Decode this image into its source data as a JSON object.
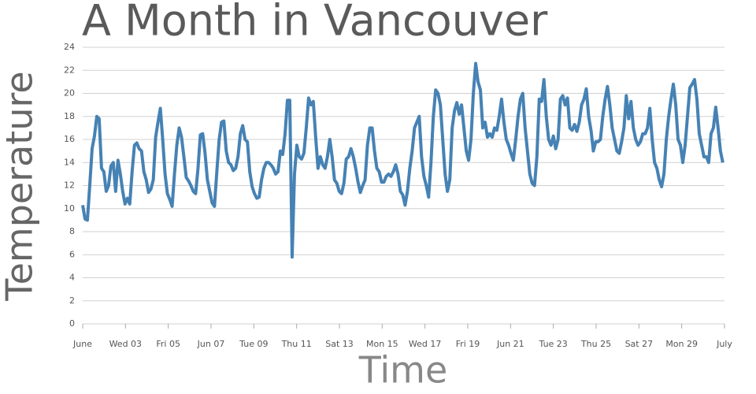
{
  "chart_data": {
    "type": "line",
    "title": "A Month in Vancouver",
    "xlabel": "Time",
    "ylabel": "Temperature",
    "color": "#4682b4",
    "grid": true,
    "xlim": [
      0,
      30
    ],
    "ylim": [
      0,
      24
    ],
    "yticks": [
      0,
      2,
      4,
      6,
      8,
      10,
      12,
      14,
      16,
      18,
      20,
      22,
      24
    ],
    "xticks": [
      {
        "value": 0,
        "label": "June"
      },
      {
        "value": 2,
        "label": "Wed 03"
      },
      {
        "value": 4,
        "label": "Fri 05"
      },
      {
        "value": 6,
        "label": "Jun 07"
      },
      {
        "value": 8,
        "label": "Tue 09"
      },
      {
        "value": 10,
        "label": "Thu 11"
      },
      {
        "value": 12,
        "label": "Sat 13"
      },
      {
        "value": 14,
        "label": "Mon 15"
      },
      {
        "value": 16,
        "label": "Wed 17"
      },
      {
        "value": 18,
        "label": "Fri 19"
      },
      {
        "value": 20,
        "label": "Jun 21"
      },
      {
        "value": 22,
        "label": "Tue 23"
      },
      {
        "value": 24,
        "label": "Thu 25"
      },
      {
        "value": 26,
        "label": "Sat 27"
      },
      {
        "value": 28,
        "label": "Mon 29"
      },
      {
        "value": 30,
        "label": "July"
      }
    ],
    "x": [
      0,
      0.11,
      0.22,
      0.33,
      0.44,
      0.55,
      0.66,
      0.77,
      0.88,
      0.99,
      1.1,
      1.21,
      1.32,
      1.43,
      1.54,
      1.65,
      1.76,
      1.87,
      1.98,
      2.09,
      2.2,
      2.31,
      2.42,
      2.53,
      2.64,
      2.75,
      2.86,
      2.97,
      3.08,
      3.19,
      3.3,
      3.41,
      3.52,
      3.63,
      3.74,
      3.85,
      3.96,
      4.07,
      4.18,
      4.29,
      4.4,
      4.51,
      4.62,
      4.73,
      4.84,
      4.95,
      5.06,
      5.17,
      5.28,
      5.39,
      5.5,
      5.61,
      5.72,
      5.83,
      5.94,
      6.05,
      6.16,
      6.27,
      6.38,
      6.49,
      6.6,
      6.71,
      6.82,
      6.93,
      7.04,
      7.15,
      7.26,
      7.37,
      7.48,
      7.59,
      7.7,
      7.81,
      7.92,
      8.03,
      8.14,
      8.25,
      8.36,
      8.47,
      8.58,
      8.69,
      8.8,
      8.91,
      9.02,
      9.13,
      9.24,
      9.35,
      9.46,
      9.57,
      9.68,
      9.79,
      9.9,
      10.01,
      10.12,
      10.23,
      10.34,
      10.45,
      10.56,
      10.67,
      10.78,
      10.89,
      11,
      11.11,
      11.22,
      11.33,
      11.44,
      11.55,
      11.66,
      11.77,
      11.88,
      11.99,
      12.1,
      12.21,
      12.32,
      12.43,
      12.54,
      12.65,
      12.76,
      12.87,
      12.98,
      13.09,
      13.2,
      13.31,
      13.42,
      13.53,
      13.64,
      13.75,
      13.86,
      13.97,
      14.08,
      14.19,
      14.3,
      14.41,
      14.52,
      14.63,
      14.74,
      14.85,
      14.96,
      15.07,
      15.18,
      15.29,
      15.4,
      15.51,
      15.62,
      15.73,
      15.84,
      15.95,
      16.06,
      16.17,
      16.28,
      16.39,
      16.5,
      16.61,
      16.72,
      16.83,
      16.94,
      17.05,
      17.16,
      17.27,
      17.38,
      17.49,
      17.6,
      17.71,
      17.82,
      17.93,
      18.04,
      18.15,
      18.26,
      18.37,
      18.48,
      18.59,
      18.7,
      18.81,
      18.92,
      19.03,
      19.14,
      19.25,
      19.36,
      19.47,
      19.58,
      19.69,
      19.8,
      19.91,
      20.02,
      20.13,
      20.24,
      20.35,
      20.46,
      20.57,
      20.68,
      20.79,
      20.9,
      21.01,
      21.12,
      21.23,
      21.34,
      21.45,
      21.56,
      21.67,
      21.78,
      21.89,
      22,
      22.11,
      22.22,
      22.33,
      22.44,
      22.55,
      22.66,
      22.77,
      22.88,
      22.99,
      23.1,
      23.21,
      23.32,
      23.43,
      23.54,
      23.65,
      23.76,
      23.87,
      23.98,
      24.09,
      24.2,
      24.31,
      24.42,
      24.53,
      24.64,
      24.75,
      24.86,
      24.97,
      25.08,
      25.19,
      25.3,
      25.41,
      25.52,
      25.63,
      25.74,
      25.85,
      25.96,
      26.07,
      26.18,
      26.29,
      26.4,
      26.51,
      26.62,
      26.73,
      26.84,
      26.95,
      27.06,
      27.17,
      27.28,
      27.39,
      27.5,
      27.61,
      27.72,
      27.83,
      27.94,
      28.05,
      28.16,
      28.27,
      28.38,
      28.49,
      28.6,
      28.71,
      28.82,
      28.93,
      29.04,
      29.15,
      29.26,
      29.37,
      29.48,
      29.59,
      29.7,
      29.81,
      29.92
    ],
    "values": [
      10.3,
      9.1,
      9.0,
      12,
      15.2,
      16.3,
      18.0,
      17.8,
      13.5,
      13.2,
      11.5,
      12,
      13.7,
      14,
      11.5,
      14.2,
      13,
      11.5,
      10.4,
      10.9,
      10.4,
      13.2,
      15.5,
      15.7,
      15.2,
      15,
      13.2,
      12.5,
      11.4,
      11.7,
      12.5,
      16.2,
      17.5,
      18.7,
      16,
      13,
      11.3,
      10.8,
      10.2,
      13,
      15.5,
      17,
      16.2,
      14.5,
      12.7,
      12.4,
      12,
      11.5,
      11.3,
      13.5,
      16.4,
      16.5,
      14.8,
      12.5,
      11.5,
      10.5,
      10.2,
      13.2,
      16,
      17.5,
      17.6,
      15,
      14,
      13.8,
      13.3,
      13.5,
      14.5,
      16.5,
      17.2,
      16,
      15.8,
      13.2,
      11.9,
      11.3,
      10.9,
      11,
      12.5,
      13.5,
      14,
      14,
      13.8,
      13.5,
      13,
      13.2,
      15,
      14.7,
      16.5,
      19.4,
      19.4,
      5.8,
      13,
      15.5,
      14.5,
      14.3,
      14.8,
      17,
      19.6,
      19,
      19.3,
      16.2,
      13.5,
      14.5,
      13.8,
      13.5,
      14.5,
      16,
      14.5,
      12.5,
      12.2,
      11.5,
      11.3,
      12.2,
      14.3,
      14.5,
      15.2,
      14.5,
      13.5,
      12.3,
      11.4,
      12,
      12.5,
      15.5,
      17,
      17,
      15,
      13.5,
      13.2,
      12.3,
      12.3,
      12.8,
      13,
      12.8,
      13.2,
      13.8,
      13,
      11.5,
      11.2,
      10.3,
      11.5,
      13.5,
      15,
      17,
      17.5,
      18,
      14.5,
      12.8,
      12,
      11,
      14,
      18,
      20.3,
      20,
      19,
      16,
      13,
      11.5,
      12.5,
      17,
      18.5,
      19.2,
      18.2,
      19,
      17,
      15,
      14.2,
      16,
      20,
      22.6,
      21,
      20.3,
      17,
      17.5,
      16.2,
      16.5,
      16.2,
      17,
      16.8,
      18,
      19.5,
      17.5,
      16,
      15.5,
      14.8,
      14.2,
      16,
      18,
      19.5,
      20,
      17,
      15,
      13,
      12.2,
      12,
      14.5,
      19.5,
      19.3,
      21.2,
      18,
      16,
      15.5,
      16.3,
      15.2,
      16,
      19.5,
      19.8,
      19,
      19.6,
      17,
      16.8,
      17.3,
      16.7,
      17.5,
      19,
      19.5,
      20.4,
      18,
      16.8,
      15,
      15.8,
      15.8,
      16,
      18,
      19.5,
      20.6,
      19,
      17,
      16,
      15,
      14.8,
      15.8,
      17,
      19.8,
      17.8,
      19.3,
      17,
      16,
      15.5,
      15.8,
      16.5,
      16.5,
      17,
      18.7,
      16,
      14,
      13.5,
      12.5,
      11.9,
      13,
      16,
      18,
      19.5,
      20.8,
      19,
      16,
      15.5,
      14,
      15.5,
      18,
      20.5,
      20.8,
      21.2,
      19.5,
      16.5,
      15.5,
      14.5,
      14.5,
      14,
      16.5,
      17,
      18.8,
      17,
      15,
      14
    ]
  }
}
